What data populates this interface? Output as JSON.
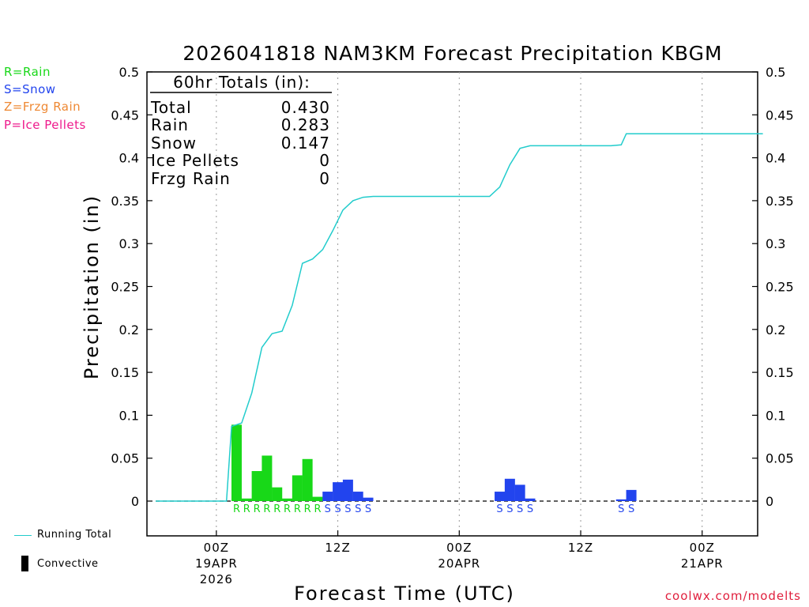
{
  "title": "2026041818 NAM3KM Forecast Precipitation KBGM",
  "ptype_legend": [
    {
      "text": "R=Rain",
      "color": "#18d818"
    },
    {
      "text": "S=Snow",
      "color": "#2244ee"
    },
    {
      "text": "Z=Frzg Rain",
      "color": "#ee8833"
    },
    {
      "text": "P=Ice Pellets",
      "color": "#ee1a8c"
    }
  ],
  "totals": {
    "header": "60hr Totals (in):",
    "rows": [
      {
        "label": "Total",
        "value": "0.430"
      },
      {
        "label": "Rain",
        "value": "0.283"
      },
      {
        "label": "Snow",
        "value": "0.147"
      },
      {
        "label": "Ice Pellets",
        "value": "0"
      },
      {
        "label": "Frzg Rain",
        "value": "0"
      }
    ]
  },
  "key": {
    "running_total": "Running Total",
    "convective": "Convective"
  },
  "credit": "coolwx.com/modelts",
  "colors": {
    "rain": "#18d818",
    "snow": "#2244ee",
    "running": "#22cccc",
    "grid": "#999999"
  },
  "chart_data": {
    "type": "bar",
    "title": "2026041818 NAM3KM Forecast Precipitation KBGM",
    "xlabel": "Forecast Time (UTC)",
    "ylabel": "Precipitation (in)",
    "ylim": [
      -0.04,
      0.5
    ],
    "yticks": [
      0.5,
      0.45,
      0.4,
      0.35,
      0.3,
      0.25,
      0.2,
      0.15,
      0.1,
      0.05,
      0
    ],
    "ytick_labels": [
      "0.5",
      "0.45",
      "0.4",
      "0.35",
      "0.3",
      "0.25",
      "0.2",
      "0.15",
      "0.1",
      "0.05",
      "0"
    ],
    "x_unit": "forecast hour",
    "xlim": [
      -0.5,
      60.5
    ],
    "xticks": [
      {
        "hour": 6,
        "lines": [
          "00Z",
          "19APR",
          "2026"
        ]
      },
      {
        "hour": 18,
        "lines": [
          "12Z"
        ]
      },
      {
        "hour": 30,
        "lines": [
          "00Z",
          "20APR"
        ]
      },
      {
        "hour": 42,
        "lines": [
          "12Z"
        ]
      },
      {
        "hour": 54,
        "lines": [
          "00Z",
          "21APR"
        ]
      }
    ],
    "hourly": [
      {
        "h": 8,
        "type": "R",
        "value": 0.089
      },
      {
        "h": 9,
        "type": "R",
        "value": 0.003
      },
      {
        "h": 10,
        "type": "R",
        "value": 0.035
      },
      {
        "h": 11,
        "type": "R",
        "value": 0.053
      },
      {
        "h": 12,
        "type": "R",
        "value": 0.016
      },
      {
        "h": 13,
        "type": "R",
        "value": 0.003
      },
      {
        "h": 14,
        "type": "R",
        "value": 0.03
      },
      {
        "h": 15,
        "type": "R",
        "value": 0.049
      },
      {
        "h": 16,
        "type": "R",
        "value": 0.005
      },
      {
        "h": 17,
        "type": "S",
        "value": 0.011
      },
      {
        "h": 18,
        "type": "S",
        "value": 0.022
      },
      {
        "h": 19,
        "type": "S",
        "value": 0.025
      },
      {
        "h": 20,
        "type": "S",
        "value": 0.011
      },
      {
        "h": 21,
        "type": "S",
        "value": 0.004
      },
      {
        "h": 34,
        "type": "S",
        "value": 0.011
      },
      {
        "h": 35,
        "type": "S",
        "value": 0.026
      },
      {
        "h": 36,
        "type": "S",
        "value": 0.019
      },
      {
        "h": 37,
        "type": "S",
        "value": 0.003
      },
      {
        "h": 46,
        "type": "S",
        "value": 0.002
      },
      {
        "h": 47,
        "type": "S",
        "value": 0.013
      }
    ],
    "running_total": [
      [
        0,
        0
      ],
      [
        7,
        0
      ],
      [
        7.5,
        0.087
      ],
      [
        8.5,
        0.091
      ],
      [
        9.5,
        0.126
      ],
      [
        10.5,
        0.179
      ],
      [
        11.5,
        0.195
      ],
      [
        12.5,
        0.198
      ],
      [
        13.5,
        0.228
      ],
      [
        14.5,
        0.277
      ],
      [
        15.5,
        0.282
      ],
      [
        16.5,
        0.293
      ],
      [
        17.5,
        0.315
      ],
      [
        18.5,
        0.339
      ],
      [
        19.5,
        0.35
      ],
      [
        20.5,
        0.354
      ],
      [
        21.5,
        0.355
      ],
      [
        33,
        0.355
      ],
      [
        34,
        0.366
      ],
      [
        35,
        0.392
      ],
      [
        36,
        0.411
      ],
      [
        37,
        0.414
      ],
      [
        45,
        0.414
      ],
      [
        46,
        0.415
      ],
      [
        46.5,
        0.428
      ],
      [
        60,
        0.428
      ]
    ],
    "series": [
      {
        "name": "Rain hourly (in)",
        "values": [
          0.089,
          0.003,
          0.035,
          0.053,
          0.016,
          0.003,
          0.03,
          0.049,
          0.005
        ]
      },
      {
        "name": "Snow hourly (in)",
        "values": [
          0.011,
          0.022,
          0.025,
          0.011,
          0.004,
          0.011,
          0.026,
          0.019,
          0.003,
          0.002,
          0.013
        ]
      },
      {
        "name": "Running Total (in)",
        "values": [
          0,
          0.089,
          0.179,
          0.198,
          0.282,
          0.355,
          0.414,
          0.43
        ]
      }
    ],
    "legend": [
      "Running Total",
      "Convective"
    ]
  }
}
